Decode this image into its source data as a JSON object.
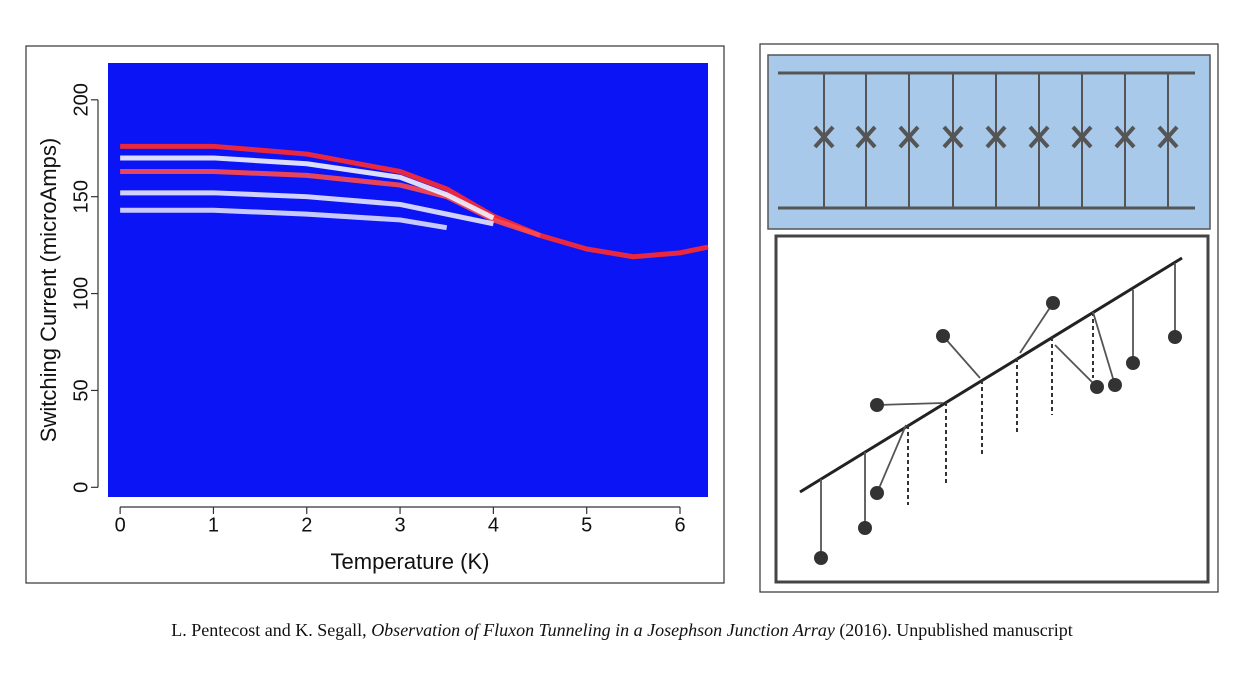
{
  "chart_data": {
    "type": "heatmap-lines",
    "x_label": "Temperature (K)",
    "y_label": "Switching Current (microAmps)",
    "xlim": [
      -0.13,
      6.3
    ],
    "ylim": [
      -5,
      219
    ],
    "xticks": [
      0,
      1,
      2,
      3,
      4,
      5,
      6
    ],
    "yticks": [
      0,
      50,
      100,
      150,
      200
    ],
    "x": [
      0,
      1,
      2,
      3,
      3.5,
      4,
      4.5,
      5,
      5.5,
      6,
      6.3
    ],
    "series": [
      {
        "color": "#ff2a2a",
        "values": [
          176,
          176,
          172,
          163,
          154,
          140,
          130,
          123,
          119,
          121,
          124
        ]
      },
      {
        "color": "#ff4a4a",
        "values": [
          163,
          163,
          161,
          156,
          150,
          138,
          130,
          null,
          null,
          null,
          null
        ]
      },
      {
        "color": "#f2f2ff",
        "values": [
          170,
          170,
          167,
          160,
          151,
          139,
          null,
          null,
          null,
          null,
          null
        ]
      },
      {
        "color": "#e6e6ff",
        "values": [
          152,
          152,
          150,
          146,
          141,
          136,
          null,
          null,
          null,
          null,
          null
        ]
      },
      {
        "color": "#dcdcff",
        "values": [
          143,
          143,
          141,
          138,
          134,
          null,
          null,
          null,
          null,
          null,
          null
        ]
      }
    ]
  },
  "caption": {
    "authors": "L. Pentecost and K. Segall,",
    "title": "Observation of Fluxon Tunneling in a Josephson Junction Array",
    "note": "(2016). Unpublished manuscript"
  }
}
